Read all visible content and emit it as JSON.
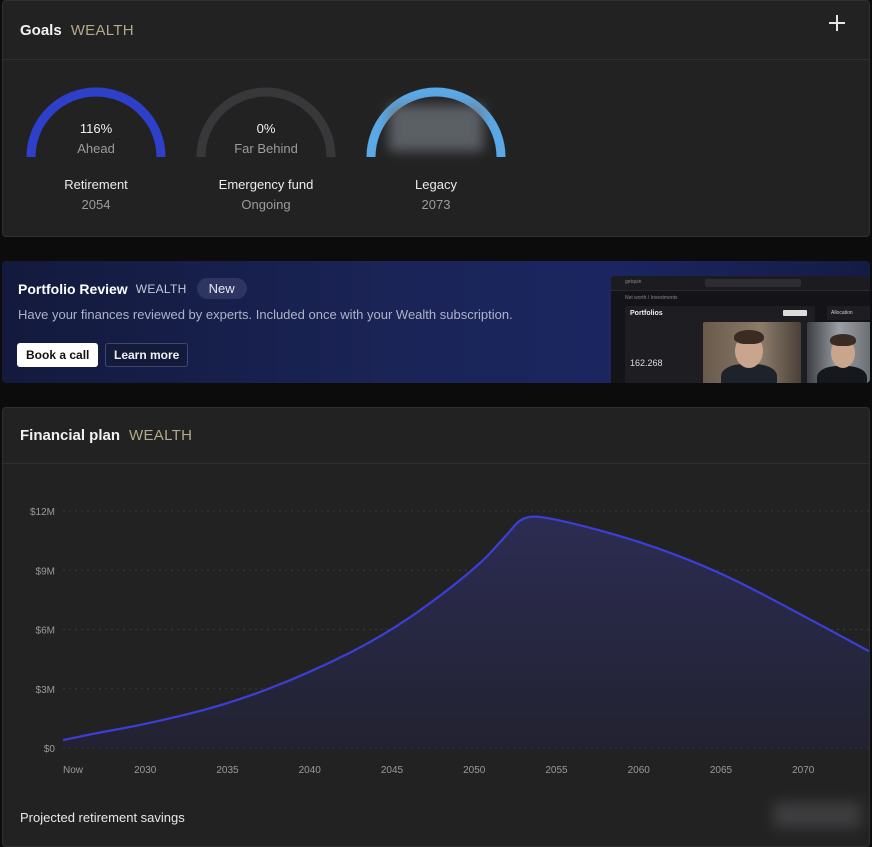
{
  "goals": {
    "title": "Goals",
    "badge": "WEALTH",
    "add_icon": "plus-icon",
    "items": [
      {
        "percent": "116%",
        "status": "Ahead",
        "name": "Retirement",
        "year": "2054",
        "progress": 1.0,
        "color": "#2e3fc9"
      },
      {
        "percent": "0%",
        "status": "Far Behind",
        "name": "Emergency fund",
        "year": "Ongoing",
        "progress": 0.0,
        "color": "#3a3a3c"
      },
      {
        "percent": "",
        "status": "",
        "name": "Legacy",
        "year": "2073",
        "progress": 1.0,
        "color": "#5aa8e6"
      }
    ]
  },
  "banner": {
    "title": "Portfolio Review",
    "badge": "WEALTH",
    "new_label": "New",
    "description": "Have your finances reviewed by experts. Included once with your Wealth subscription.",
    "primary_button": "Book a call",
    "secondary_button": "Learn more",
    "preview": {
      "brand": "getquin",
      "breadcrumb": "Net worth / Investments",
      "heading": "Portfolios",
      "value": "162.268",
      "allocation": "Allocation"
    }
  },
  "plan": {
    "title": "Financial plan",
    "badge": "WEALTH",
    "footer_label": "Projected retirement savings"
  },
  "chart_data": {
    "type": "area",
    "x": [
      "Now",
      2027,
      2030,
      2035,
      2040,
      2045,
      2050,
      2052,
      2053,
      2055,
      2060,
      2065,
      2070,
      2074
    ],
    "values": [
      0.4,
      0.75,
      1.2,
      2.2,
      3.8,
      5.9,
      9.0,
      10.8,
      11.8,
      11.6,
      10.5,
      8.9,
      6.7,
      4.9
    ],
    "x_tick_labels": [
      "Now",
      "2030",
      "2035",
      "2040",
      "2045",
      "2050",
      "2055",
      "2060",
      "2065",
      "2070"
    ],
    "y_tick_labels": [
      "$0",
      "$3M",
      "$6M",
      "$9M",
      "$12M"
    ],
    "ylim": [
      0,
      12
    ],
    "line_color": "#3b3fd6",
    "grid": true
  }
}
